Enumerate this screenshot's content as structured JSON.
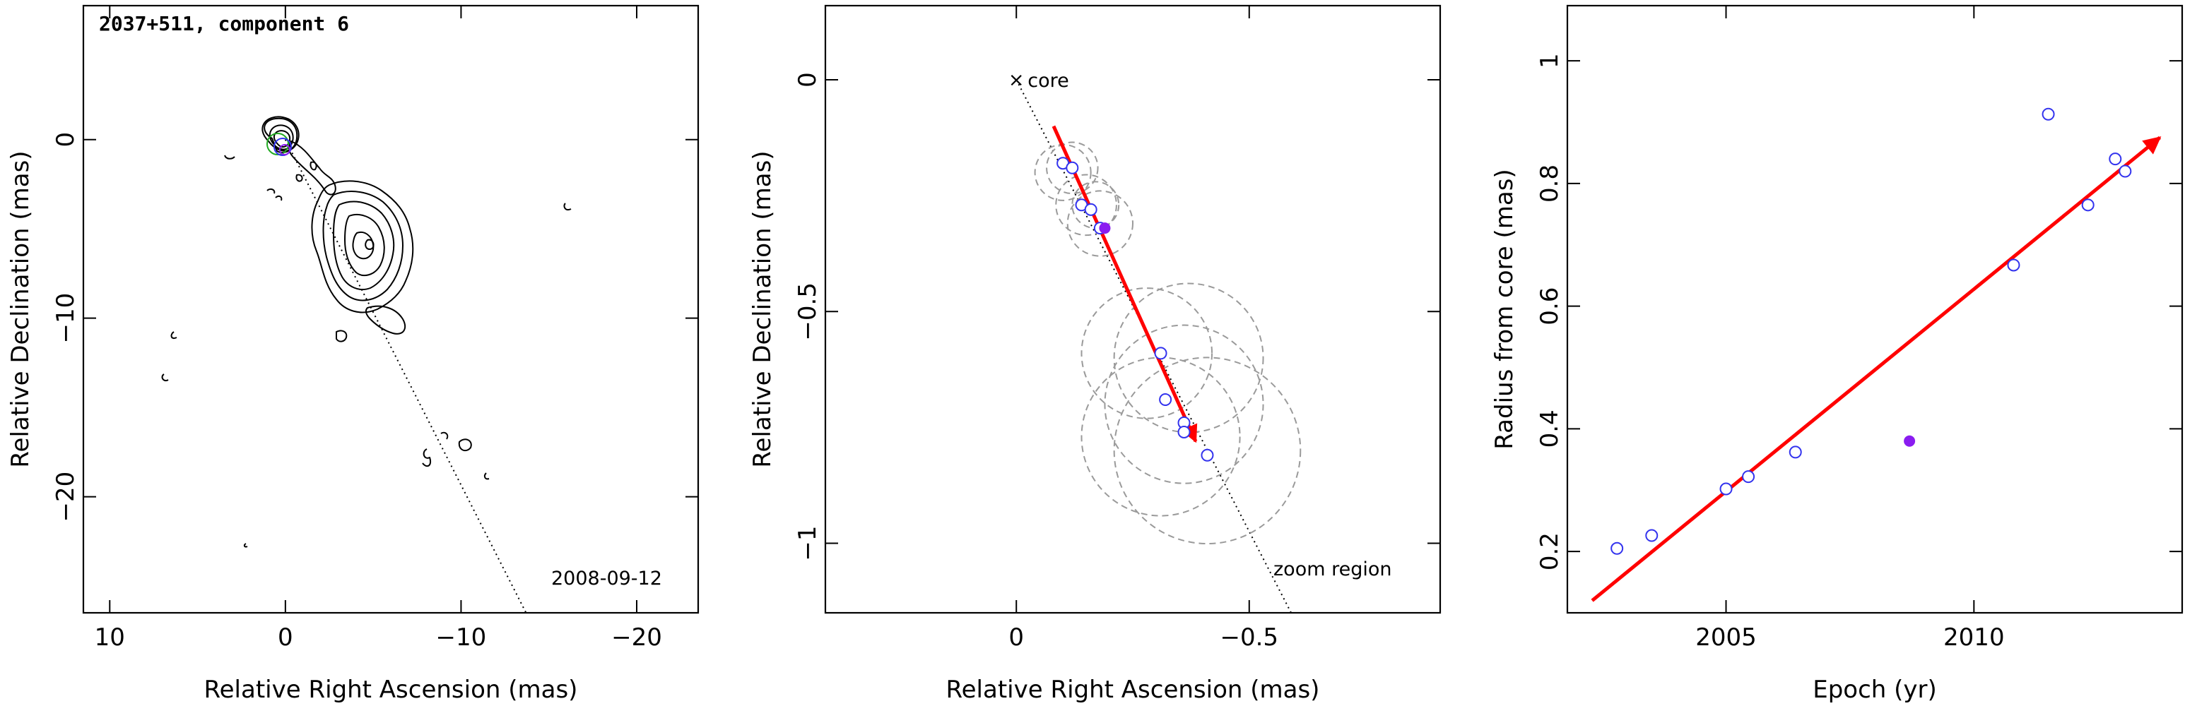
{
  "colors": {
    "trend_arrow": "#ff0000",
    "open_marker": "#3333ee",
    "filled_marker": "#8a1cf0",
    "model_circles": "#9a9a9a",
    "contours": "#000000"
  },
  "chart_data": [
    {
      "type": "contour",
      "title": "2037+511, component 6",
      "date_label": "2008-09-12",
      "xlabel": "Relative Right Ascension (mas)",
      "ylabel": "Relative Declination (mas)",
      "xlim": [
        11.5,
        -23.5
      ],
      "ylim": [
        -26.5,
        7.5
      ],
      "xticks": [
        10,
        0,
        -10,
        -20
      ],
      "xtick_labels": [
        "10",
        "0",
        "−10",
        "−20"
      ],
      "yticks": [
        0,
        -10,
        -20
      ],
      "ytick_labels": [
        "0",
        "−10",
        "−20"
      ],
      "trajectory_line": {
        "from": [
          0,
          0
        ],
        "to": [
          -13.7,
          -26.5
        ]
      },
      "marked_component": [
        -0.18,
        -0.32
      ]
    },
    {
      "type": "scatter",
      "xlabel": "Relative Right Ascension (mas)",
      "ylabel": "Relative Declination (mas)",
      "xlim": [
        0.41,
        -0.91
      ],
      "ylim": [
        -1.15,
        0.16
      ],
      "xticks": [
        0,
        -0.5
      ],
      "xtick_labels": [
        "0",
        "−0.5"
      ],
      "yticks": [
        0,
        -0.5,
        -1
      ],
      "ytick_labels": [
        "0",
        "−0.5",
        "−1"
      ],
      "annotations": {
        "core": "core",
        "zoom": "zoom region"
      },
      "core_marker": "×",
      "positions": [
        {
          "x": -0.1,
          "y": -0.18
        },
        {
          "x": -0.12,
          "y": -0.19
        },
        {
          "x": -0.14,
          "y": -0.27
        },
        {
          "x": -0.16,
          "y": -0.28
        },
        {
          "x": -0.18,
          "y": -0.32
        },
        {
          "x": -0.31,
          "y": -0.59
        },
        {
          "x": -0.32,
          "y": -0.69
        },
        {
          "x": -0.36,
          "y": -0.74
        },
        {
          "x": -0.36,
          "y": -0.76
        },
        {
          "x": -0.41,
          "y": -0.81
        }
      ],
      "highlighted_position": {
        "x": -0.19,
        "y": -0.32
      },
      "model_circles": [
        {
          "x": -0.1,
          "y": -0.2,
          "r": 0.06
        },
        {
          "x": -0.12,
          "y": -0.19,
          "r": 0.055
        },
        {
          "x": -0.15,
          "y": -0.27,
          "r": 0.065
        },
        {
          "x": -0.17,
          "y": -0.27,
          "r": 0.05
        },
        {
          "x": -0.18,
          "y": -0.31,
          "r": 0.07
        },
        {
          "x": -0.28,
          "y": -0.59,
          "r": 0.14
        },
        {
          "x": -0.37,
          "y": -0.6,
          "r": 0.16
        },
        {
          "x": -0.36,
          "y": -0.7,
          "r": 0.17
        },
        {
          "x": -0.31,
          "y": -0.77,
          "r": 0.17
        },
        {
          "x": -0.41,
          "y": -0.8,
          "r": 0.2
        }
      ],
      "trend_arrow": {
        "from": [
          -0.08,
          -0.1
        ],
        "to": [
          -0.385,
          -0.78
        ]
      },
      "trajectory_line": {
        "from": [
          0,
          0
        ],
        "to": [
          -0.59,
          -1.15
        ]
      }
    },
    {
      "type": "scatter",
      "xlabel": "Epoch (yr)",
      "ylabel": "Radius from core (mas)",
      "xlim": [
        2001.8,
        2014.2
      ],
      "ylim": [
        0.1,
        1.09
      ],
      "xticks": [
        2005,
        2010
      ],
      "xtick_labels": [
        "2005",
        "2010"
      ],
      "yticks": [
        0.2,
        0.4,
        0.6,
        0.8,
        1.0
      ],
      "ytick_labels": [
        "0.2",
        "0.4",
        "0.6",
        "0.8",
        "1"
      ],
      "series": [
        {
          "x": [
            2002.8,
            2003.5,
            2005.0,
            2005.45,
            2006.4,
            2010.8,
            2011.5,
            2012.3,
            2012.85,
            2013.05
          ],
          "y": [
            0.205,
            0.226,
            0.302,
            0.322,
            0.362,
            0.667,
            0.913,
            0.765,
            0.84,
            0.82
          ]
        }
      ],
      "highlighted_point": {
        "x": 2008.7,
        "y": 0.38
      },
      "trend_arrow": {
        "from": [
          2002.3,
          0.12
        ],
        "to": [
          2013.75,
          0.875
        ]
      }
    }
  ]
}
